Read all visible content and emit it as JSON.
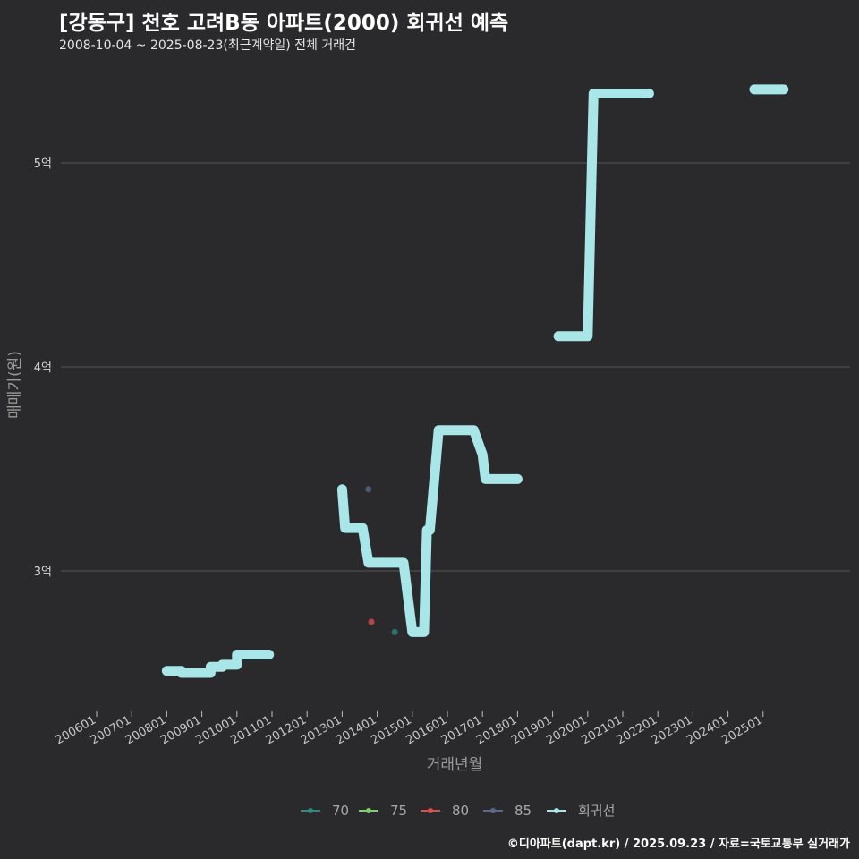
{
  "header": {
    "title": "[강동구] 천호 고려B동 아파트(2000) 회귀선 예측",
    "subtitle": "2008-10-04 ~ 2025-08-23(최근계약일) 전체 거래건"
  },
  "footer": {
    "credit": "©디아파트(dapt.kr) / 2025.09.23 / 자료=국토교통부 실거래가"
  },
  "chart_data": {
    "type": "line",
    "xlabel": "거래년월",
    "ylabel": "매매가(원)",
    "x_ticks": [
      "200601",
      "200701",
      "200801",
      "200901",
      "201001",
      "201101",
      "201201",
      "201301",
      "201401",
      "201501",
      "201601",
      "201701",
      "201801",
      "201901",
      "202001",
      "202101",
      "202201",
      "202301",
      "202401",
      "202501"
    ],
    "y_ticks": [
      {
        "value": 3.0,
        "label": "3억"
      },
      {
        "value": 4.0,
        "label": "4억"
      },
      {
        "value": 5.0,
        "label": "5억"
      }
    ],
    "y_unit": "억원",
    "ylim": [
      2.4,
      5.75
    ],
    "grid": true,
    "legend_position": "bottom",
    "legend": [
      {
        "name": "70",
        "color": "#2e8b82"
      },
      {
        "name": "75",
        "color": "#7ed16a"
      },
      {
        "name": "80",
        "color": "#d9534f"
      },
      {
        "name": "85",
        "color": "#5b6a8a"
      },
      {
        "name": "회귀선",
        "color": "#a8e6e8"
      }
    ],
    "series": [
      {
        "name": "회귀선",
        "color": "#a8e6e8",
        "segments": [
          [
            {
              "x": "2008-01",
              "y": 2.51
            },
            {
              "x": "2008-06",
              "y": 2.51
            },
            {
              "x": "2008-06",
              "y": 2.5
            },
            {
              "x": "2009-04",
              "y": 2.5
            },
            {
              "x": "2009-04",
              "y": 2.53
            },
            {
              "x": "2009-08",
              "y": 2.53
            },
            {
              "x": "2009-08",
              "y": 2.54
            },
            {
              "x": "2010-01",
              "y": 2.54
            },
            {
              "x": "2010-01",
              "y": 2.59
            },
            {
              "x": "2010-12",
              "y": 2.59
            }
          ],
          [
            {
              "x": "2013-01",
              "y": 3.4
            },
            {
              "x": "2013-02",
              "y": 3.21
            },
            {
              "x": "2013-08",
              "y": 3.21
            },
            {
              "x": "2013-10",
              "y": 3.04
            },
            {
              "x": "2014-10",
              "y": 3.04
            },
            {
              "x": "2015-01",
              "y": 2.7
            },
            {
              "x": "2015-02",
              "y": 2.7
            },
            {
              "x": "2015-05",
              "y": 2.7
            },
            {
              "x": "2015-06",
              "y": 3.2
            },
            {
              "x": "2015-07",
              "y": 3.2
            },
            {
              "x": "2015-10",
              "y": 3.69
            },
            {
              "x": "2016-10",
              "y": 3.69
            },
            {
              "x": "2017-01",
              "y": 3.57
            },
            {
              "x": "2017-02",
              "y": 3.45
            },
            {
              "x": "2018-01",
              "y": 3.45
            }
          ],
          [
            {
              "x": "2019-03",
              "y": 4.15
            },
            {
              "x": "2020-01",
              "y": 4.15
            },
            {
              "x": "2020-03",
              "y": 5.34
            },
            {
              "x": "2021-10",
              "y": 5.34
            }
          ],
          [
            {
              "x": "2024-10",
              "y": 5.36
            },
            {
              "x": "2025-08",
              "y": 5.36
            }
          ]
        ]
      }
    ],
    "points": [
      {
        "series": "85",
        "x": "2013-10",
        "y": 3.4
      },
      {
        "series": "80",
        "x": "2013-11",
        "y": 2.75
      },
      {
        "series": "70",
        "x": "2014-07",
        "y": 2.7
      }
    ]
  }
}
